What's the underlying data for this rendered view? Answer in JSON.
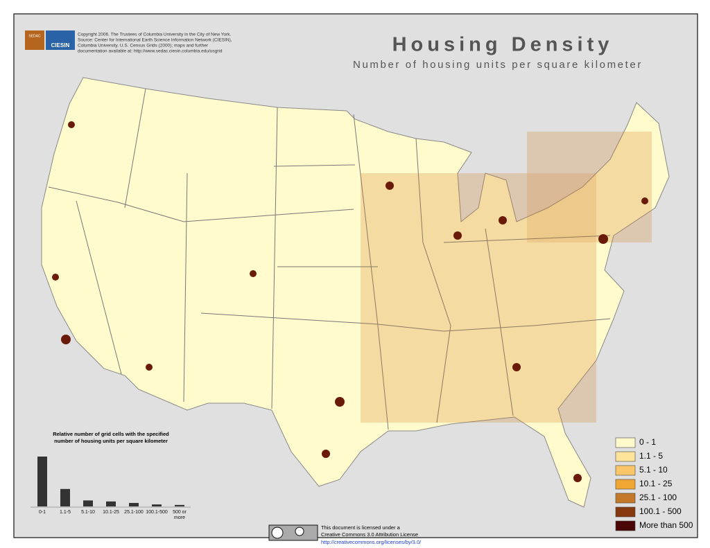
{
  "header": {
    "title": "Housing Density",
    "subtitle": "Number of housing units per square kilometer"
  },
  "logos": {
    "sedac": "SEDAC",
    "ciesin": "CIESIN"
  },
  "credits": [
    "Copyright 2006.  The Trustees of Columbia University in the City of New York.",
    "Source: Center for International Earth Science Information Network (CIESIN),",
    "Columbia University.  U.S. Census Grids (2000); maps and further",
    "documentation available at: http://www.sedac.ciesin.columbia.edu/usgrid"
  ],
  "chart_data": {
    "type": "bar",
    "title": [
      "Relative number of grid cells with the specified",
      "number of housing units per square kilometer"
    ],
    "categories": [
      "0-1",
      "1.1-5",
      "5.1-10",
      "10.1-25",
      "25.1-100",
      "100.1-500",
      "500 or more"
    ],
    "values": [
      100,
      35,
      12,
      10,
      7,
      4,
      3
    ],
    "color": "#333333"
  },
  "legend": [
    {
      "label": "0 - 1",
      "color": "#fff9cc"
    },
    {
      "label": "1.1 - 5",
      "color": "#fde49a"
    },
    {
      "label": "5.1 - 10",
      "color": "#fbc66a"
    },
    {
      "label": "10.1 - 25",
      "color": "#efa632"
    },
    {
      "label": "25.1 - 100",
      "color": "#c4782a"
    },
    {
      "label": "100.1 - 500",
      "color": "#86390f"
    },
    {
      "label": "More than 500",
      "color": "#4a0606"
    }
  ],
  "license": {
    "lines": [
      "This document is licensed under a",
      "Creative Commons 3.0 Attribution License"
    ],
    "url": "http://creativecommons.org/licenses/by/3.0/"
  }
}
